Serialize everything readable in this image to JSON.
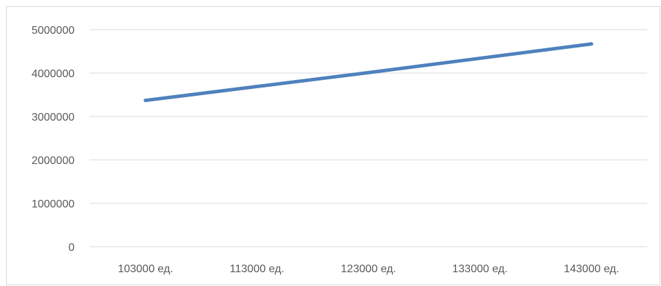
{
  "chart_data": {
    "type": "line",
    "categories": [
      "103000 ед.",
      "113000 ед.",
      "123000 ед.",
      "133000 ед.",
      "143000 ед."
    ],
    "series": [
      {
        "values": [
          3370000,
          3690000,
          4010000,
          4340000,
          4670000
        ],
        "color": "#4f81bd"
      }
    ],
    "y_ticks": [
      "0",
      "1000000",
      "2000000",
      "3000000",
      "4000000",
      "5000000"
    ],
    "ylim": [
      0,
      5000000
    ],
    "grid": true,
    "gridline_color": "#d9d9d9",
    "axis_label_color": "#595959",
    "legend": "none"
  }
}
